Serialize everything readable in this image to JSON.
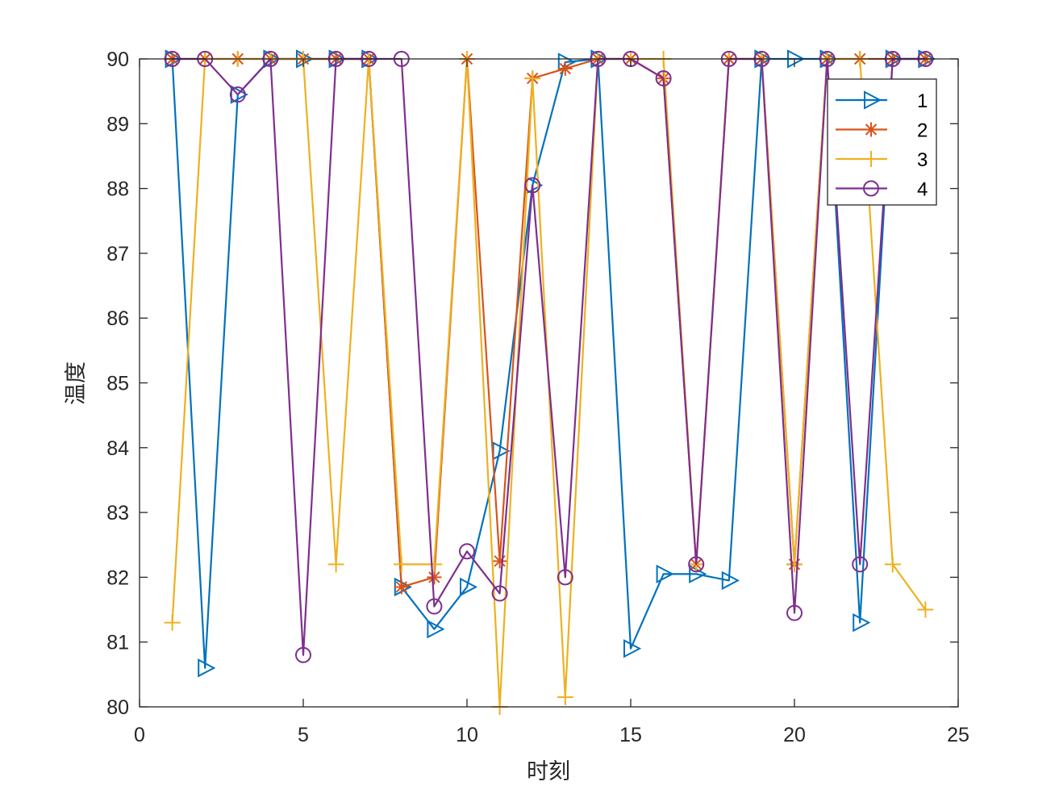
{
  "chart_data": {
    "type": "line",
    "title": "",
    "xlabel": "时刻",
    "ylabel": "温度",
    "xlim": [
      0,
      25
    ],
    "ylim": [
      80,
      90
    ],
    "xticks": [
      0,
      5,
      10,
      15,
      20,
      25
    ],
    "yticks": [
      80,
      81,
      82,
      83,
      84,
      85,
      86,
      87,
      88,
      89,
      90
    ],
    "grid": false,
    "box": true,
    "legend_position": "top-right",
    "x": [
      1,
      2,
      3,
      4,
      5,
      6,
      7,
      8,
      9,
      10,
      11,
      12,
      13,
      14,
      15,
      16,
      17,
      18,
      19,
      20,
      21,
      22,
      23,
      24
    ],
    "series": [
      {
        "name": "1",
        "color": "#0072BD",
        "marker": "triangle-right",
        "values": [
          90,
          80.6,
          89.45,
          90,
          90,
          90,
          90,
          81.85,
          81.2,
          81.85,
          83.95,
          88.05,
          89.95,
          90,
          80.9,
          82.05,
          82.05,
          81.95,
          90,
          90,
          90,
          81.3,
          90,
          90
        ]
      },
      {
        "name": "2",
        "color": "#D95319",
        "marker": "asterisk",
        "values": [
          90,
          90,
          90,
          90,
          90,
          90,
          90,
          81.85,
          82,
          90,
          82.25,
          89.7,
          89.85,
          90,
          90,
          89.7,
          82.2,
          90,
          90,
          82.2,
          90,
          90,
          90,
          90
        ]
      },
      {
        "name": "3",
        "color": "#EDB120",
        "marker": "plus",
        "values": [
          81.3,
          90,
          90,
          90,
          90,
          82.2,
          90,
          82.2,
          82.2,
          90,
          80,
          89.7,
          80.15,
          90,
          90,
          90,
          82.2,
          90,
          90,
          82.2,
          90,
          90,
          82.2,
          81.5
        ]
      },
      {
        "name": "4",
        "color": "#7E2F8E",
        "marker": "circle",
        "values": [
          90,
          90,
          89.45,
          90,
          80.8,
          90,
          90,
          90,
          81.55,
          82.4,
          81.75,
          88.05,
          82,
          90,
          90,
          89.7,
          82.2,
          90,
          90,
          81.45,
          90,
          82.2,
          90,
          90
        ]
      }
    ]
  }
}
